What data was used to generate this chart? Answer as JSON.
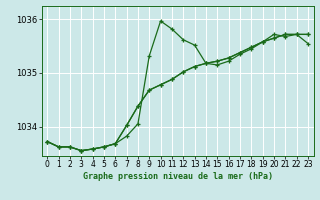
{
  "title": "Graphe pression niveau de la mer (hPa)",
  "bg_color": "#cce8e8",
  "grid_color": "#ffffff",
  "line_color": "#1a6b1a",
  "xlim": [
    -0.5,
    23.5
  ],
  "ylim": [
    1033.45,
    1036.25
  ],
  "yticks": [
    1034,
    1035,
    1036
  ],
  "xticks": [
    0,
    1,
    2,
    3,
    4,
    5,
    6,
    7,
    8,
    9,
    10,
    11,
    12,
    13,
    14,
    15,
    16,
    17,
    18,
    19,
    20,
    21,
    22,
    23
  ],
  "series": [
    [
      1033.72,
      1033.62,
      1033.62,
      1033.55,
      1033.58,
      1033.62,
      1033.68,
      1033.82,
      1034.05,
      1035.32,
      1035.97,
      1035.82,
      1035.62,
      1035.52,
      1035.18,
      1035.15,
      1035.22,
      1035.35,
      1035.45,
      1035.58,
      1035.72,
      1035.68,
      1035.72,
      1035.72
    ],
    [
      1033.72,
      1033.62,
      1033.62,
      1033.55,
      1033.58,
      1033.62,
      1033.68,
      1034.02,
      1034.38,
      1034.68,
      1034.78,
      1034.88,
      1035.02,
      1035.12,
      1035.18,
      1035.22,
      1035.28,
      1035.38,
      1035.48,
      1035.58,
      1035.65,
      1035.72,
      1035.72,
      1035.72
    ],
    [
      1033.72,
      1033.62,
      1033.62,
      1033.55,
      1033.58,
      1033.62,
      1033.68,
      1034.02,
      1034.38,
      1034.68,
      1034.78,
      1034.88,
      1035.02,
      1035.12,
      1035.18,
      1035.22,
      1035.28,
      1035.38,
      1035.48,
      1035.58,
      1035.65,
      1035.72,
      1035.72,
      1035.55
    ]
  ],
  "marker": "+",
  "markersize": 3.5,
  "linewidth": 0.9,
  "figwidth": 3.2,
  "figheight": 2.0,
  "dpi": 100
}
